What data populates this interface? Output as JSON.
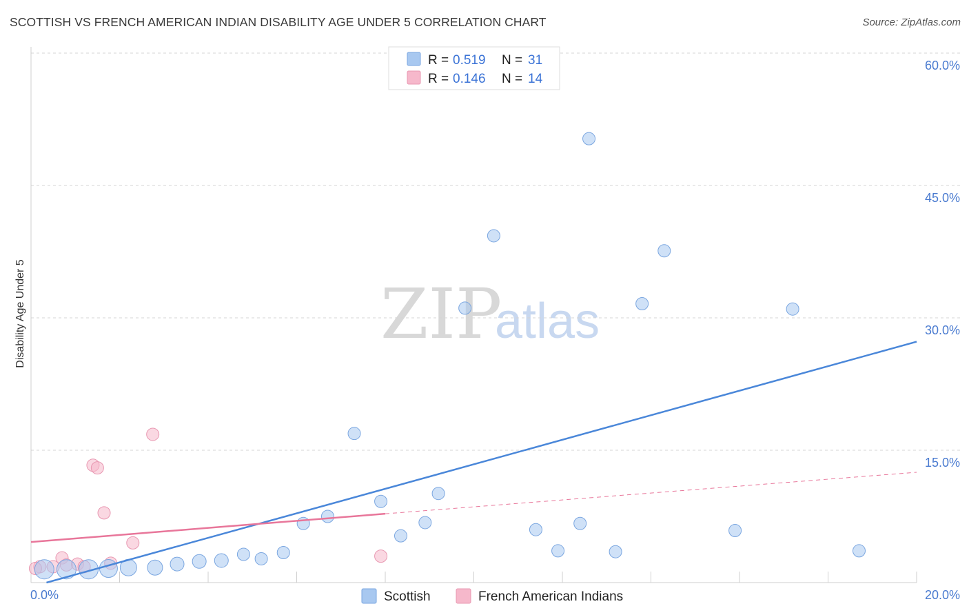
{
  "header": {
    "title": "SCOTTISH VS FRENCH AMERICAN INDIAN DISABILITY AGE UNDER 5 CORRELATION CHART",
    "source": "Source: ZipAtlas.com"
  },
  "watermark": {
    "zip": "ZIP",
    "atlas": "atlas"
  },
  "legend": {
    "rows": [
      {
        "r_label": "R =",
        "r_value": "0.519",
        "n_label": "N =",
        "n_value": "31",
        "color": "#a8c8f0"
      },
      {
        "r_label": "R =",
        "r_value": "0.146",
        "n_label": "N =",
        "n_value": "14",
        "color": "#f6b8cb"
      }
    ]
  },
  "chart_data": {
    "type": "scatter",
    "title": "SCOTTISH VS FRENCH AMERICAN INDIAN DISABILITY AGE UNDER 5 CORRELATION CHART",
    "xlabel": "",
    "ylabel": "Disability Age Under 5",
    "xlim": [
      0,
      20
    ],
    "ylim": [
      0,
      60
    ],
    "x_tick_labels": [
      "0.0%",
      "20.0%"
    ],
    "y_ticks": [
      15,
      30,
      45,
      60
    ],
    "y_tick_labels": [
      "15.0%",
      "30.0%",
      "45.0%",
      "60.0%"
    ],
    "grid": true,
    "legend_position": "top-center",
    "colors": {
      "scottish": "#4a87d9",
      "french": "#e8769a"
    },
    "series": [
      {
        "name": "Scottish",
        "color": "#a8c8f0",
        "points": [
          [
            0.3,
            1.5,
            14
          ],
          [
            0.8,
            1.5,
            14
          ],
          [
            1.3,
            1.5,
            14
          ],
          [
            1.75,
            1.6,
            13
          ],
          [
            2.2,
            1.7,
            12
          ],
          [
            2.8,
            1.7,
            11
          ],
          [
            3.3,
            2.1,
            10
          ],
          [
            3.8,
            2.4,
            10
          ],
          [
            4.3,
            2.5,
            10
          ],
          [
            4.8,
            3.2,
            9
          ],
          [
            5.2,
            2.7,
            9
          ],
          [
            5.7,
            3.4,
            9
          ],
          [
            6.15,
            6.7,
            9
          ],
          [
            6.7,
            7.5,
            9
          ],
          [
            7.3,
            16.9,
            9
          ],
          [
            7.9,
            9.2,
            9
          ],
          [
            8.35,
            5.3,
            9
          ],
          [
            8.9,
            6.8,
            9
          ],
          [
            9.2,
            10.1,
            9
          ],
          [
            9.8,
            31.1,
            9
          ],
          [
            10.45,
            39.3,
            9
          ],
          [
            11.4,
            6.0,
            9
          ],
          [
            11.9,
            3.6,
            9
          ],
          [
            12.4,
            6.7,
            9
          ],
          [
            12.6,
            50.3,
            9
          ],
          [
            13.2,
            3.5,
            9
          ],
          [
            13.8,
            31.6,
            9
          ],
          [
            14.3,
            37.6,
            9
          ],
          [
            15.9,
            5.9,
            9
          ],
          [
            17.2,
            31.0,
            9
          ],
          [
            18.7,
            3.6,
            9
          ]
        ]
      },
      {
        "name": "French American Indians",
        "color": "#f6b8cb",
        "points": [
          [
            0.2,
            1.8,
            9
          ],
          [
            0.5,
            1.8,
            9
          ],
          [
            0.7,
            2.8,
            9
          ],
          [
            0.8,
            2.0,
            9
          ],
          [
            1.05,
            2.1,
            9
          ],
          [
            1.4,
            13.3,
            9
          ],
          [
            1.5,
            13.0,
            9
          ],
          [
            1.65,
            7.9,
            9
          ],
          [
            1.8,
            2.2,
            9
          ],
          [
            2.3,
            4.5,
            9
          ],
          [
            2.75,
            16.8,
            9
          ],
          [
            7.9,
            3.0,
            9
          ],
          [
            0.1,
            1.6,
            9
          ],
          [
            1.2,
            1.8,
            9
          ]
        ]
      }
    ],
    "trendlines": [
      {
        "series": "Scottish",
        "x": [
          0.35,
          20.0
        ],
        "y": [
          0.0,
          27.3
        ],
        "style": "solid"
      },
      {
        "series": "French American Indians",
        "x": [
          0.0,
          8.0
        ],
        "y": [
          4.6,
          7.8
        ],
        "style": "solid"
      },
      {
        "series": "French American Indians",
        "x": [
          8.0,
          20.0
        ],
        "y": [
          7.8,
          12.5
        ],
        "style": "dashed"
      }
    ]
  },
  "bottom_legend": {
    "items": [
      {
        "label": "Scottish",
        "color": "#a8c8f0"
      },
      {
        "label": "French American Indians",
        "color": "#f6b8cb"
      }
    ]
  }
}
